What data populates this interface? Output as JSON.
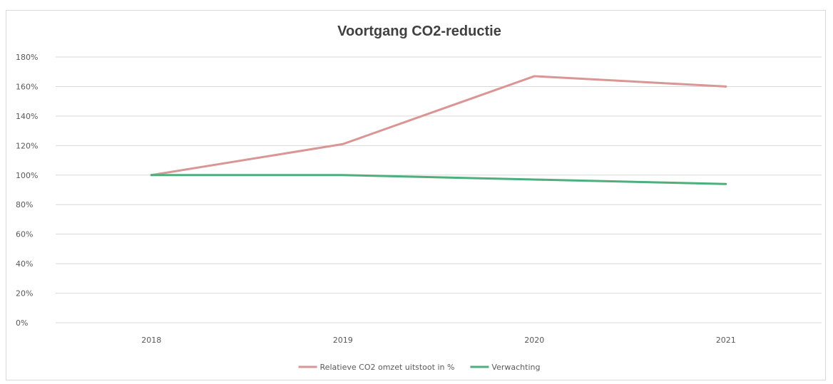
{
  "chart_data": {
    "type": "line",
    "title": "Voortgang CO2-reductie",
    "xlabel": "",
    "ylabel": "",
    "categories": [
      "2018",
      "2019",
      "2020",
      "2021"
    ],
    "y_ticks": [
      "0%",
      "20%",
      "40%",
      "60%",
      "80%",
      "100%",
      "120%",
      "140%",
      "160%",
      "180%"
    ],
    "ylim": [
      0,
      180
    ],
    "grid": true,
    "legend_position": "bottom",
    "series": [
      {
        "name": "Relatieve CO2 omzet uitstoot in %",
        "color": "#d99694",
        "values": [
          100,
          121,
          167,
          160
        ]
      },
      {
        "name": "Verwachting",
        "color": "#4daf7c",
        "values": [
          100,
          100,
          97,
          94
        ]
      }
    ]
  }
}
